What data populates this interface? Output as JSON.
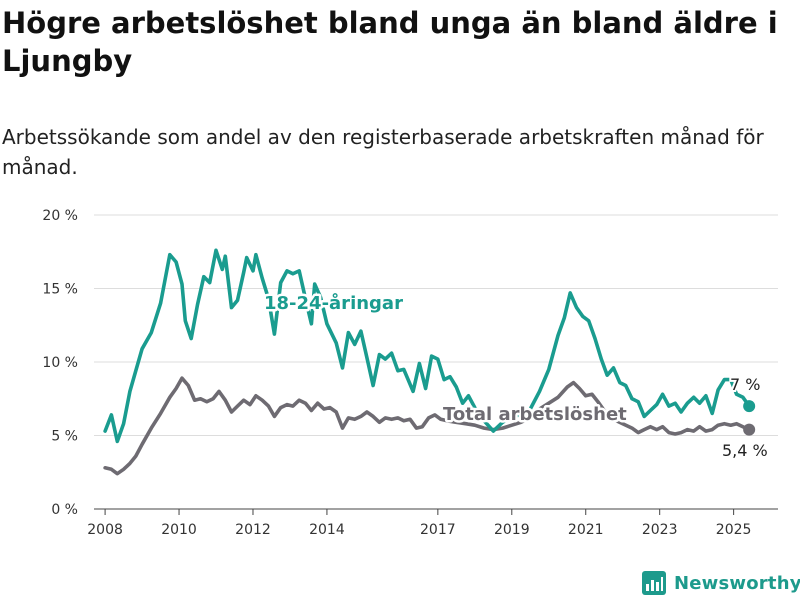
{
  "title": "Högre arbetslöshet bland unga än bland äldre i Ljungby",
  "subtitle": "Arbetssökande som andel av den registerbaserade arbetskraften månad för månad.",
  "brand": {
    "name": "Newsworthy",
    "icon": "bar-chart-icon",
    "color": "#1d9a8c"
  },
  "chart_data": {
    "type": "line",
    "title": "Högre arbetslöshet bland unga än bland äldre i Ljungby",
    "subtitle": "Arbetssökande som andel av den registerbaserade arbetskraften månad för månad.",
    "xlabel": "",
    "ylabel": "",
    "ylim": [
      0,
      20
    ],
    "xlim": [
      2007.7,
      2026.2
    ],
    "y_ticks": [
      0,
      5,
      10,
      15,
      20
    ],
    "y_tick_labels": [
      "0 %",
      "5 %",
      "10 %",
      "15 %",
      "20 %"
    ],
    "x_ticks": [
      2008,
      2010,
      2012,
      2014,
      2017,
      2019,
      2021,
      2023,
      2025
    ],
    "x_tick_labels": [
      "2008",
      "2010",
      "2012",
      "2014",
      "2017",
      "2019",
      "2021",
      "2023",
      "2025"
    ],
    "grid": true,
    "series": [
      {
        "name": "18-24-åringar",
        "color": "#1a9c8f",
        "end_label": "7 %",
        "points": [
          [
            2008.0,
            5.3
          ],
          [
            2008.17,
            6.4
          ],
          [
            2008.33,
            4.6
          ],
          [
            2008.5,
            5.8
          ],
          [
            2008.67,
            8.0
          ],
          [
            2008.83,
            9.4
          ],
          [
            2009.0,
            10.9
          ],
          [
            2009.25,
            12.0
          ],
          [
            2009.5,
            14.0
          ],
          [
            2009.75,
            17.3
          ],
          [
            2009.92,
            16.8
          ],
          [
            2010.08,
            15.3
          ],
          [
            2010.17,
            12.8
          ],
          [
            2010.33,
            11.6
          ],
          [
            2010.5,
            13.9
          ],
          [
            2010.67,
            15.8
          ],
          [
            2010.83,
            15.4
          ],
          [
            2011.0,
            17.6
          ],
          [
            2011.17,
            16.3
          ],
          [
            2011.25,
            17.2
          ],
          [
            2011.42,
            13.7
          ],
          [
            2011.58,
            14.2
          ],
          [
            2011.75,
            16.1
          ],
          [
            2011.83,
            17.1
          ],
          [
            2012.0,
            16.2
          ],
          [
            2012.08,
            17.3
          ],
          [
            2012.25,
            15.7
          ],
          [
            2012.42,
            14.3
          ],
          [
            2012.58,
            11.9
          ],
          [
            2012.75,
            15.4
          ],
          [
            2012.92,
            16.2
          ],
          [
            2013.08,
            16.0
          ],
          [
            2013.25,
            16.2
          ],
          [
            2013.42,
            14.3
          ],
          [
            2013.58,
            12.6
          ],
          [
            2013.67,
            15.3
          ],
          [
            2013.83,
            14.4
          ],
          [
            2014.0,
            12.6
          ],
          [
            2014.25,
            11.3
          ],
          [
            2014.42,
            9.6
          ],
          [
            2014.58,
            12.0
          ],
          [
            2014.75,
            11.2
          ],
          [
            2014.92,
            12.1
          ],
          [
            2015.08,
            10.3
          ],
          [
            2015.25,
            8.4
          ],
          [
            2015.42,
            10.5
          ],
          [
            2015.58,
            10.2
          ],
          [
            2015.75,
            10.6
          ],
          [
            2015.92,
            9.4
          ],
          [
            2016.08,
            9.5
          ],
          [
            2016.33,
            8.0
          ],
          [
            2016.5,
            9.9
          ],
          [
            2016.67,
            8.2
          ],
          [
            2016.83,
            10.4
          ],
          [
            2017.0,
            10.2
          ],
          [
            2017.17,
            8.8
          ],
          [
            2017.33,
            9.0
          ],
          [
            2017.5,
            8.3
          ],
          [
            2017.67,
            7.2
          ],
          [
            2017.83,
            7.7
          ],
          [
            2018.0,
            6.9
          ],
          [
            2018.25,
            6.0
          ],
          [
            2018.5,
            5.3
          ],
          [
            2018.75,
            5.9
          ],
          [
            2019.0,
            6.3
          ],
          [
            2019.25,
            6.4
          ],
          [
            2019.5,
            6.8
          ],
          [
            2019.75,
            8.0
          ],
          [
            2020.0,
            9.5
          ],
          [
            2020.25,
            11.8
          ],
          [
            2020.42,
            13.0
          ],
          [
            2020.58,
            14.7
          ],
          [
            2020.75,
            13.7
          ],
          [
            2020.92,
            13.1
          ],
          [
            2021.08,
            12.8
          ],
          [
            2021.25,
            11.6
          ],
          [
            2021.42,
            10.2
          ],
          [
            2021.58,
            9.1
          ],
          [
            2021.75,
            9.6
          ],
          [
            2021.92,
            8.6
          ],
          [
            2022.08,
            8.4
          ],
          [
            2022.25,
            7.5
          ],
          [
            2022.42,
            7.3
          ],
          [
            2022.58,
            6.3
          ],
          [
            2022.75,
            6.7
          ],
          [
            2022.92,
            7.1
          ],
          [
            2023.08,
            7.8
          ],
          [
            2023.25,
            7.0
          ],
          [
            2023.42,
            7.2
          ],
          [
            2023.58,
            6.6
          ],
          [
            2023.75,
            7.2
          ],
          [
            2023.92,
            7.6
          ],
          [
            2024.08,
            7.2
          ],
          [
            2024.25,
            7.7
          ],
          [
            2024.42,
            6.5
          ],
          [
            2024.58,
            8.1
          ],
          [
            2024.75,
            8.8
          ],
          [
            2024.92,
            8.8
          ],
          [
            2025.08,
            7.8
          ],
          [
            2025.25,
            7.6
          ],
          [
            2025.42,
            7.0
          ]
        ]
      },
      {
        "name": "Total arbetslöshet",
        "color": "#6e6b72",
        "end_label": "5,4 %",
        "points": [
          [
            2008.0,
            2.8
          ],
          [
            2008.17,
            2.7
          ],
          [
            2008.33,
            2.4
          ],
          [
            2008.5,
            2.7
          ],
          [
            2008.67,
            3.1
          ],
          [
            2008.83,
            3.6
          ],
          [
            2009.0,
            4.4
          ],
          [
            2009.25,
            5.5
          ],
          [
            2009.5,
            6.5
          ],
          [
            2009.75,
            7.6
          ],
          [
            2009.92,
            8.2
          ],
          [
            2010.08,
            8.9
          ],
          [
            2010.25,
            8.4
          ],
          [
            2010.42,
            7.4
          ],
          [
            2010.58,
            7.5
          ],
          [
            2010.75,
            7.3
          ],
          [
            2010.92,
            7.5
          ],
          [
            2011.08,
            8.0
          ],
          [
            2011.25,
            7.4
          ],
          [
            2011.42,
            6.6
          ],
          [
            2011.58,
            7.0
          ],
          [
            2011.75,
            7.4
          ],
          [
            2011.92,
            7.1
          ],
          [
            2012.08,
            7.7
          ],
          [
            2012.25,
            7.4
          ],
          [
            2012.42,
            7.0
          ],
          [
            2012.58,
            6.3
          ],
          [
            2012.75,
            6.9
          ],
          [
            2012.92,
            7.1
          ],
          [
            2013.08,
            7.0
          ],
          [
            2013.25,
            7.4
          ],
          [
            2013.42,
            7.2
          ],
          [
            2013.58,
            6.7
          ],
          [
            2013.75,
            7.2
          ],
          [
            2013.92,
            6.8
          ],
          [
            2014.08,
            6.9
          ],
          [
            2014.25,
            6.6
          ],
          [
            2014.42,
            5.5
          ],
          [
            2014.58,
            6.2
          ],
          [
            2014.75,
            6.1
          ],
          [
            2014.92,
            6.3
          ],
          [
            2015.08,
            6.6
          ],
          [
            2015.25,
            6.3
          ],
          [
            2015.42,
            5.9
          ],
          [
            2015.58,
            6.2
          ],
          [
            2015.75,
            6.1
          ],
          [
            2015.92,
            6.2
          ],
          [
            2016.08,
            6.0
          ],
          [
            2016.25,
            6.1
          ],
          [
            2016.42,
            5.5
          ],
          [
            2016.58,
            5.6
          ],
          [
            2016.75,
            6.2
          ],
          [
            2016.92,
            6.4
          ],
          [
            2017.08,
            6.1
          ],
          [
            2017.25,
            6.0
          ],
          [
            2017.5,
            5.9
          ],
          [
            2017.75,
            5.8
          ],
          [
            2018.0,
            5.7
          ],
          [
            2018.25,
            5.5
          ],
          [
            2018.5,
            5.4
          ],
          [
            2018.75,
            5.5
          ],
          [
            2019.0,
            5.7
          ],
          [
            2019.25,
            5.9
          ],
          [
            2019.5,
            6.2
          ],
          [
            2019.75,
            6.8
          ],
          [
            2020.0,
            7.2
          ],
          [
            2020.25,
            7.6
          ],
          [
            2020.5,
            8.3
          ],
          [
            2020.67,
            8.6
          ],
          [
            2020.83,
            8.2
          ],
          [
            2021.0,
            7.7
          ],
          [
            2021.17,
            7.8
          ],
          [
            2021.33,
            7.3
          ],
          [
            2021.5,
            6.7
          ],
          [
            2021.67,
            6.3
          ],
          [
            2021.83,
            6.0
          ],
          [
            2022.0,
            5.8
          ],
          [
            2022.25,
            5.5
          ],
          [
            2022.42,
            5.2
          ],
          [
            2022.58,
            5.4
          ],
          [
            2022.75,
            5.6
          ],
          [
            2022.92,
            5.4
          ],
          [
            2023.08,
            5.6
          ],
          [
            2023.25,
            5.2
          ],
          [
            2023.42,
            5.1
          ],
          [
            2023.58,
            5.2
          ],
          [
            2023.75,
            5.4
          ],
          [
            2023.92,
            5.3
          ],
          [
            2024.08,
            5.6
          ],
          [
            2024.25,
            5.3
          ],
          [
            2024.42,
            5.4
          ],
          [
            2024.58,
            5.7
          ],
          [
            2024.75,
            5.8
          ],
          [
            2024.92,
            5.7
          ],
          [
            2025.08,
            5.8
          ],
          [
            2025.25,
            5.6
          ],
          [
            2025.42,
            5.4
          ]
        ]
      }
    ]
  }
}
